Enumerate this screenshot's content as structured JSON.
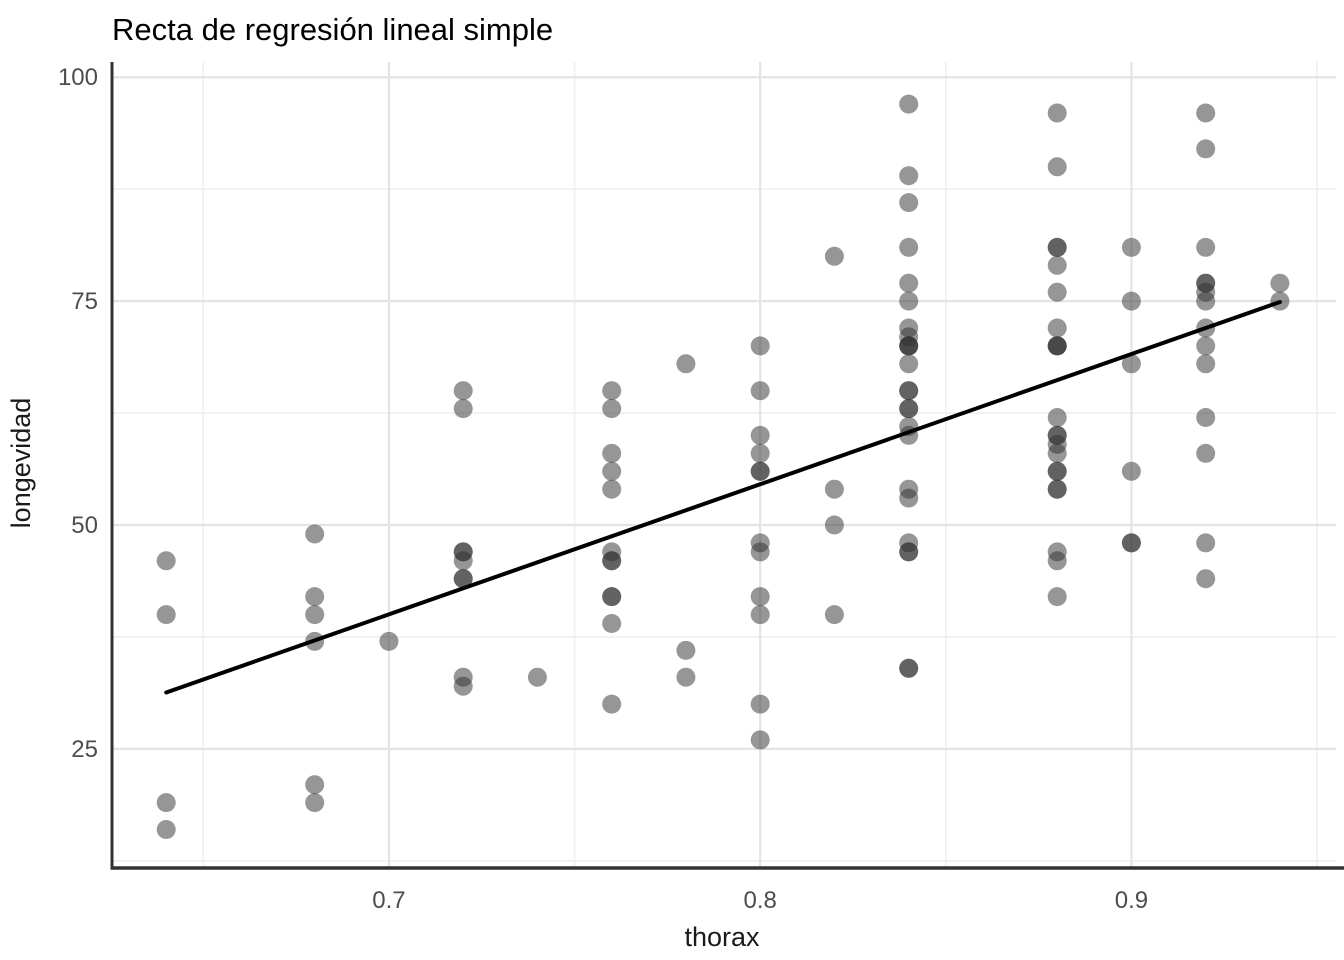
{
  "chart_data": {
    "type": "scatter",
    "title": "Recta de regresión lineal simple",
    "xlabel": "thorax",
    "ylabel": "longevidad",
    "xlim": [
      0.6254,
      0.9551
    ],
    "ylim": [
      11.7,
      101.7
    ],
    "x_ticks": [
      0.7,
      0.8,
      0.9
    ],
    "x_tick_labels": [
      "0.7",
      "0.8",
      "0.9"
    ],
    "x_minor_ticks": [
      0.65,
      0.75,
      0.85,
      0.95
    ],
    "y_ticks": [
      25,
      50,
      75,
      100
    ],
    "y_tick_labels": [
      "25",
      "50",
      "75",
      "100"
    ],
    "y_minor_ticks": [
      12.5,
      37.5,
      62.5,
      87.5
    ],
    "grid": true,
    "legend": "none",
    "point_radius": 9.5,
    "line_width": 4,
    "colors": {
      "point": "rgba(45,45,45,0.5)",
      "regression_line": "#000000",
      "grid_major": "#e4e4e4",
      "grid_minor": "#efefef",
      "axis_line": "#333333",
      "tick_text": "#4d4d4d",
      "title_text": "#000000"
    },
    "regression_line": {
      "x1": 0.64,
      "y1": 31.3,
      "x2": 0.94,
      "y2": 74.9
    },
    "points": [
      [
        0.64,
        46
      ],
      [
        0.64,
        40
      ],
      [
        0.64,
        19
      ],
      [
        0.64,
        16
      ],
      [
        0.68,
        49
      ],
      [
        0.68,
        42
      ],
      [
        0.68,
        40
      ],
      [
        0.68,
        37
      ],
      [
        0.68,
        21
      ],
      [
        0.68,
        19
      ],
      [
        0.7,
        37
      ],
      [
        0.72,
        65
      ],
      [
        0.72,
        63
      ],
      [
        0.72,
        47
      ],
      [
        0.72,
        47
      ],
      [
        0.72,
        46
      ],
      [
        0.72,
        44
      ],
      [
        0.72,
        44
      ],
      [
        0.72,
        33
      ],
      [
        0.72,
        32
      ],
      [
        0.74,
        33
      ],
      [
        0.76,
        65
      ],
      [
        0.76,
        63
      ],
      [
        0.76,
        58
      ],
      [
        0.76,
        56
      ],
      [
        0.76,
        54
      ],
      [
        0.76,
        47
      ],
      [
        0.76,
        46
      ],
      [
        0.76,
        46
      ],
      [
        0.76,
        42
      ],
      [
        0.76,
        42
      ],
      [
        0.76,
        39
      ],
      [
        0.76,
        30
      ],
      [
        0.78,
        68
      ],
      [
        0.78,
        36
      ],
      [
        0.78,
        33
      ],
      [
        0.8,
        70
      ],
      [
        0.8,
        65
      ],
      [
        0.8,
        60
      ],
      [
        0.8,
        58
      ],
      [
        0.8,
        56
      ],
      [
        0.8,
        56
      ],
      [
        0.8,
        48
      ],
      [
        0.8,
        47
      ],
      [
        0.8,
        42
      ],
      [
        0.8,
        40
      ],
      [
        0.8,
        30
      ],
      [
        0.8,
        26
      ],
      [
        0.82,
        80
      ],
      [
        0.82,
        54
      ],
      [
        0.82,
        50
      ],
      [
        0.82,
        40
      ],
      [
        0.84,
        97
      ],
      [
        0.84,
        89
      ],
      [
        0.84,
        86
      ],
      [
        0.84,
        81
      ],
      [
        0.84,
        77
      ],
      [
        0.84,
        75
      ],
      [
        0.84,
        72
      ],
      [
        0.84,
        71
      ],
      [
        0.84,
        70
      ],
      [
        0.84,
        70
      ],
      [
        0.84,
        70
      ],
      [
        0.84,
        68
      ],
      [
        0.84,
        65
      ],
      [
        0.84,
        65
      ],
      [
        0.84,
        63
      ],
      [
        0.84,
        63
      ],
      [
        0.84,
        61
      ],
      [
        0.84,
        60
      ],
      [
        0.84,
        54
      ],
      [
        0.84,
        53
      ],
      [
        0.84,
        48
      ],
      [
        0.84,
        47
      ],
      [
        0.84,
        47
      ],
      [
        0.84,
        34
      ],
      [
        0.84,
        34
      ],
      [
        0.88,
        96
      ],
      [
        0.88,
        90
      ],
      [
        0.88,
        81
      ],
      [
        0.88,
        81
      ],
      [
        0.88,
        79
      ],
      [
        0.88,
        76
      ],
      [
        0.88,
        72
      ],
      [
        0.88,
        70
      ],
      [
        0.88,
        70
      ],
      [
        0.88,
        70
      ],
      [
        0.88,
        62
      ],
      [
        0.88,
        60
      ],
      [
        0.88,
        60
      ],
      [
        0.88,
        59
      ],
      [
        0.88,
        58
      ],
      [
        0.88,
        56
      ],
      [
        0.88,
        56
      ],
      [
        0.88,
        54
      ],
      [
        0.88,
        54
      ],
      [
        0.88,
        47
      ],
      [
        0.88,
        46
      ],
      [
        0.88,
        42
      ],
      [
        0.9,
        81
      ],
      [
        0.9,
        75
      ],
      [
        0.9,
        68
      ],
      [
        0.9,
        56
      ],
      [
        0.9,
        48
      ],
      [
        0.9,
        48
      ],
      [
        0.92,
        96
      ],
      [
        0.92,
        92
      ],
      [
        0.92,
        81
      ],
      [
        0.92,
        77
      ],
      [
        0.92,
        77
      ],
      [
        0.92,
        76
      ],
      [
        0.92,
        75
      ],
      [
        0.92,
        72
      ],
      [
        0.92,
        70
      ],
      [
        0.92,
        68
      ],
      [
        0.92,
        62
      ],
      [
        0.92,
        58
      ],
      [
        0.92,
        48
      ],
      [
        0.92,
        44
      ],
      [
        0.94,
        77
      ],
      [
        0.94,
        75
      ]
    ]
  }
}
